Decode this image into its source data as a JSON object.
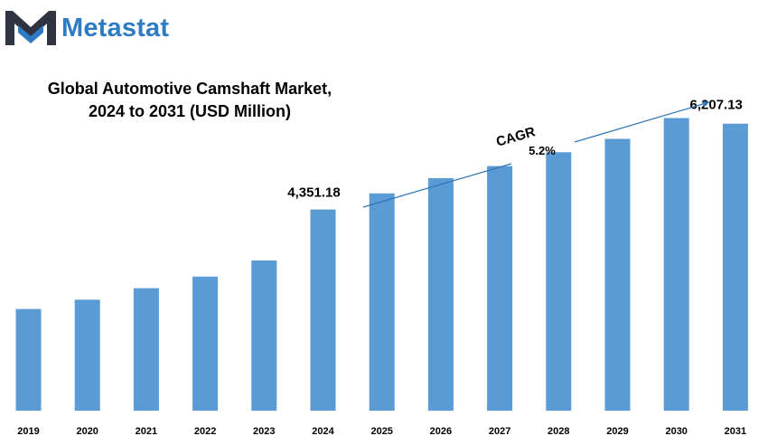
{
  "brand": {
    "name": "Metastat",
    "logo_colors": {
      "dark": "#2f3440",
      "accent": "#2e7bc4"
    }
  },
  "chart_data": {
    "type": "bar",
    "title_lines": [
      "Global Automotive Camshaft Market,",
      "2024 to 2031 (USD Million)"
    ],
    "categories": [
      "2019",
      "2020",
      "2021",
      "2022",
      "2023",
      "2024",
      "2025",
      "2026",
      "2027",
      "2028",
      "2029",
      "2030",
      "2031"
    ],
    "series": [
      {
        "values": [
          2200,
          2400,
          2650,
          2900,
          3250,
          4351.18,
          4700,
          5030,
          5290,
          5590,
          5880,
          6330,
          6207.13
        ],
        "color": "#5b9bd5"
      }
    ],
    "data_labels": [
      {
        "category": "2024",
        "text": "4,351.18"
      },
      {
        "category": "2031",
        "text": "6,207.13"
      }
    ],
    "annotation": {
      "label": "CAGR",
      "value": "5.2%",
      "arrow": "2025-to-2031"
    },
    "ylim": [
      0,
      7200
    ],
    "grid": false,
    "legend": "none",
    "xlabel": "",
    "ylabel": ""
  }
}
